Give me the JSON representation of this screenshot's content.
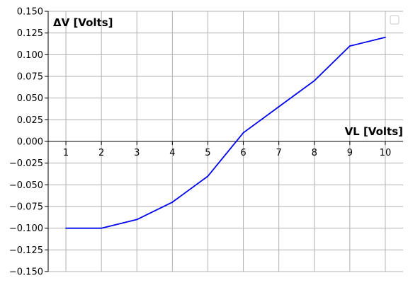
{
  "chart_data": {
    "type": "line",
    "title": "",
    "xlabel": "VL [Volts]",
    "ylabel": "ΔV [Volts]",
    "x": [
      1,
      2,
      3,
      4,
      5,
      6,
      7,
      8,
      9,
      10
    ],
    "series": [
      {
        "values": [
          -0.1,
          -0.1,
          -0.09,
          -0.07,
          -0.04,
          0.01,
          0.04,
          0.07,
          0.11,
          0.12
        ],
        "color": "#0000ee"
      }
    ],
    "xlim": [
      0.5,
      10.5
    ],
    "ylim": [
      -0.15,
      0.15
    ],
    "xticks": [
      "1",
      "2",
      "3",
      "4",
      "5",
      "6",
      "7",
      "8",
      "9",
      "10"
    ],
    "yticks": [
      "0.150",
      "0.125",
      "0.100",
      "0.075",
      "0.050",
      "0.025",
      "0.000",
      "−0.025",
      "−0.050",
      "−0.075",
      "−0.100",
      "−0.125",
      "−0.150"
    ],
    "grid": true,
    "legend": "top-right",
    "colors": {
      "grid": "#b0b0b0",
      "axis": "#000000",
      "line": "#0000ee"
    }
  }
}
